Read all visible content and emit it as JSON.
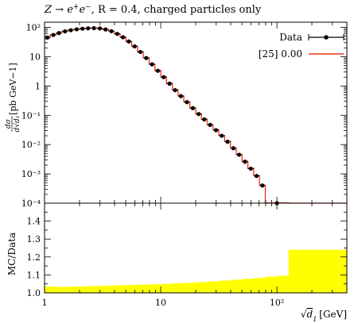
{
  "chart_data": [
    {
      "type": "line",
      "title": "Z → e⁺e⁻, R = 0.4, charged particles only",
      "title_parts": {
        "process": "Z → e",
        "ep_sup": "+",
        "e2": "e",
        "em_sup": "−",
        "R_eq": ", R = 0.4",
        "suffix": ", charged particles only"
      },
      "ylabel": "dσ / d√d₁ [pb GeV⁻¹]",
      "ylabel_parts": {
        "frac_num": "dσ",
        "frac_den": "d√d₁",
        "unit": "[pb GeV−1]"
      },
      "xlabel": "√d₁ [GeV]",
      "xlabel_parts": {
        "root": "√",
        "var": "d",
        "sub": "1",
        "unit": "[GeV]"
      },
      "x_scale": "log",
      "y_scale": "log",
      "xlim": [
        1,
        400
      ],
      "ylim": [
        0.0001,
        150
      ],
      "x_tick_labels": [
        "1",
        "10",
        "10²"
      ],
      "y_tick_labels": [
        "10⁻⁴",
        "10⁻³",
        "10⁻²",
        "10⁻¹",
        "1",
        "10",
        "10²"
      ],
      "legend_position": "top-right",
      "bin_edges": [
        1,
        1.12,
        1.26,
        1.41,
        1.58,
        1.78,
        2.0,
        2.24,
        2.51,
        2.82,
        3.16,
        3.55,
        3.98,
        4.47,
        5.01,
        5.62,
        6.31,
        7.08,
        7.94,
        8.91,
        10.0,
        11.2,
        12.6,
        14.1,
        15.8,
        17.8,
        20.0,
        22.4,
        25.1,
        28.2,
        31.6,
        35.5,
        39.8,
        44.7,
        50.1,
        56.2,
        63.1,
        70.8,
        79.4,
        126,
        400
      ],
      "series": [
        {
          "name": "Data",
          "color": "#000000",
          "x": [
            1.06,
            1.19,
            1.33,
            1.5,
            1.68,
            1.89,
            2.12,
            2.37,
            2.66,
            2.99,
            3.35,
            3.76,
            4.22,
            4.73,
            5.31,
            5.96,
            6.68,
            7.5,
            8.41,
            9.44,
            10.6,
            11.9,
            13.3,
            14.9,
            16.8,
            18.9,
            21.2,
            23.7,
            26.6,
            29.9,
            33.5,
            37.6,
            42.2,
            47.3,
            53.1,
            59.6,
            66.8,
            75.0,
            100,
            330
          ],
          "values": [
            45,
            55,
            64,
            73,
            80,
            86,
            90,
            93,
            94,
            92,
            85,
            74,
            60,
            46,
            33,
            22.5,
            14.5,
            9.0,
            5.5,
            3.3,
            2.0,
            1.2,
            0.72,
            0.45,
            0.28,
            0.175,
            0.11,
            0.072,
            0.047,
            0.031,
            0.02,
            0.0125,
            0.0075,
            0.0045,
            0.0026,
            0.0015,
            0.00085,
            0.0004,
            0.0001,
            2e-07
          ]
        },
        {
          "name": "[25] 0.00",
          "color": "#ee3311",
          "x": [
            1.06,
            1.19,
            1.33,
            1.5,
            1.68,
            1.89,
            2.12,
            2.37,
            2.66,
            2.99,
            3.35,
            3.76,
            4.22,
            4.73,
            5.31,
            5.96,
            6.68,
            7.5,
            8.41,
            9.44,
            10.6,
            11.9,
            13.3,
            14.9,
            16.8,
            18.9,
            21.2,
            23.7,
            26.6,
            29.9,
            33.5,
            37.6,
            42.2,
            47.3,
            53.1,
            59.6,
            66.8,
            75.0,
            100,
            330
          ],
          "values": [
            45.5,
            56,
            65,
            74,
            81,
            87,
            91,
            94,
            95,
            93,
            86,
            75,
            61,
            47,
            33.5,
            23,
            14.8,
            9.2,
            5.6,
            3.4,
            2.05,
            1.23,
            0.74,
            0.46,
            0.29,
            0.18,
            0.113,
            0.074,
            0.048,
            0.032,
            0.0205,
            0.0128,
            0.0077,
            0.0046,
            0.0027,
            0.00155,
            0.00088,
            0.00041,
            0.000102,
            2.5e-07
          ]
        }
      ]
    },
    {
      "type": "area",
      "ylabel": "MC/Data",
      "x_scale": "log",
      "xlim": [
        1,
        400
      ],
      "ylim": [
        1.0,
        1.5
      ],
      "y_tick_labels": [
        "1.0",
        "1.1",
        "1.2",
        "1.3",
        "1.4"
      ],
      "series": [
        {
          "name": "MC/Data",
          "color": "#ffff00",
          "bin_edges": [
            1,
            1.26,
            1.58,
            2.0,
            2.51,
            3.16,
            3.98,
            5.01,
            6.31,
            7.94,
            10.0,
            12.6,
            15.8,
            20.0,
            25.1,
            31.6,
            39.8,
            50.1,
            63.1,
            79.4,
            100,
            126,
            400
          ],
          "values": [
            1.035,
            1.033,
            1.035,
            1.036,
            1.038,
            1.04,
            1.042,
            1.044,
            1.046,
            1.048,
            1.05,
            1.053,
            1.056,
            1.06,
            1.064,
            1.068,
            1.073,
            1.078,
            1.083,
            1.09,
            1.095,
            1.24
          ]
        }
      ]
    }
  ]
}
